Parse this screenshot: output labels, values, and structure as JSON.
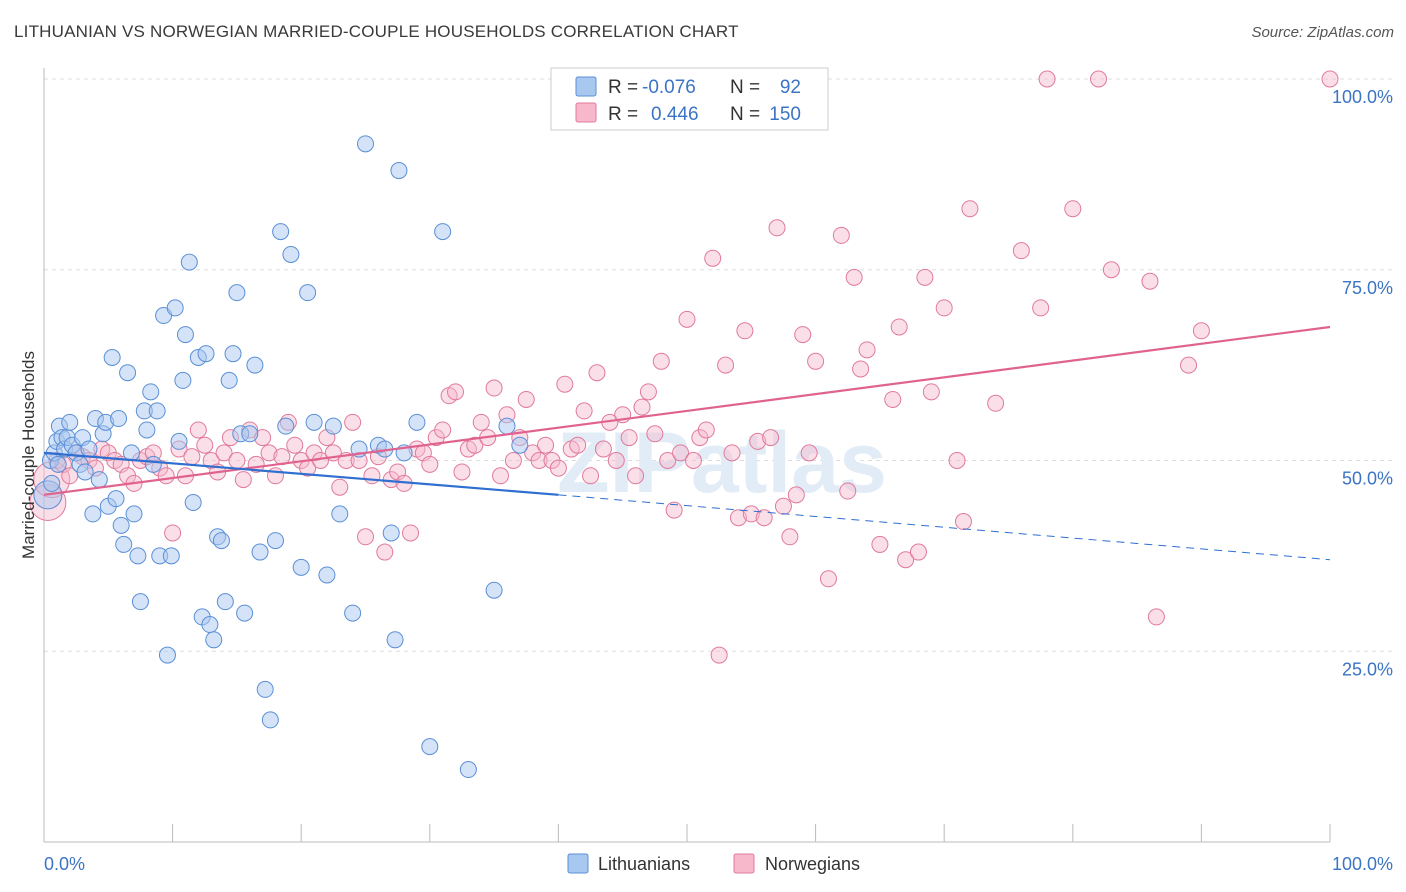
{
  "title": "LITHUANIAN VS NORWEGIAN MARRIED-COUPLE HOUSEHOLDS CORRELATION CHART",
  "source": "Source: ZipAtlas.com",
  "watermark": "ZIPatlas",
  "colors": {
    "blue_fill": "#a9c8f0",
    "blue_stroke": "#5a8fd6",
    "blue_line": "#2f6fd0",
    "pink_fill": "#f7b8cb",
    "pink_stroke": "#e07a9c",
    "pink_line": "#e0638f",
    "tick_text": "#3b74c4",
    "grid": "#dddddd"
  },
  "legend": {
    "rows": [
      {
        "r_label": "R =",
        "r_value": "-0.076",
        "n_label": "N =",
        "n_value": "92"
      },
      {
        "r_label": "R =",
        "r_value": "0.446",
        "n_label": "N =",
        "n_value": "150"
      }
    ]
  },
  "bottom_legend": {
    "items": [
      "Lithuanians",
      "Norwegians"
    ]
  },
  "chart_data": {
    "type": "scatter",
    "title": "LITHUANIAN VS NORWEGIAN MARRIED-COUPLE HOUSEHOLDS CORRELATION CHART",
    "xlabel": "",
    "ylabel": "Married-couple Households",
    "xlim": [
      0,
      100
    ],
    "ylim": [
      0,
      100
    ],
    "x_tick_labels": [
      "0.0%",
      "100.0%"
    ],
    "y_tick_labels": [
      "100.0%",
      "75.0%",
      "50.0%",
      "25.0%"
    ],
    "y_ticks": [
      100,
      75,
      50,
      25
    ],
    "series": [
      {
        "name": "Lithuanians",
        "r": -0.076,
        "n": 92,
        "trend": {
          "x0": 0,
          "y0": 51.0,
          "x1": 40,
          "y1": 45.5,
          "dash_to_x": 100,
          "dash_to_y": 37.0
        },
        "points": [
          [
            0.3,
            45.5
          ],
          [
            0.5,
            50
          ],
          [
            0.8,
            51
          ],
          [
            1.0,
            52.5
          ],
          [
            1.2,
            54.5
          ],
          [
            1.4,
            53
          ],
          [
            1.6,
            51.5
          ],
          [
            1.8,
            53
          ],
          [
            2.0,
            55
          ],
          [
            2.2,
            52
          ],
          [
            2.5,
            51
          ],
          [
            2.8,
            49.5
          ],
          [
            3.0,
            53
          ],
          [
            3.2,
            48.5
          ],
          [
            3.5,
            51.5
          ],
          [
            3.8,
            43
          ],
          [
            4.0,
            55.5
          ],
          [
            4.3,
            47.5
          ],
          [
            4.6,
            53.5
          ],
          [
            4.8,
            55
          ],
          [
            5.0,
            44
          ],
          [
            5.3,
            63.5
          ],
          [
            5.6,
            45
          ],
          [
            5.8,
            55.5
          ],
          [
            6.0,
            41.5
          ],
          [
            6.2,
            39
          ],
          [
            6.5,
            61.5
          ],
          [
            6.8,
            51
          ],
          [
            7.0,
            43
          ],
          [
            7.3,
            37.5
          ],
          [
            7.5,
            31.5
          ],
          [
            7.8,
            56.5
          ],
          [
            8.0,
            54
          ],
          [
            8.3,
            59
          ],
          [
            8.5,
            49.5
          ],
          [
            8.8,
            56.5
          ],
          [
            9.0,
            37.5
          ],
          [
            9.3,
            69
          ],
          [
            9.6,
            24.5
          ],
          [
            9.9,
            37.5
          ],
          [
            10.2,
            70
          ],
          [
            10.5,
            52.5
          ],
          [
            10.8,
            60.5
          ],
          [
            11.0,
            66.5
          ],
          [
            11.3,
            76
          ],
          [
            11.6,
            44.5
          ],
          [
            12.0,
            63.5
          ],
          [
            12.3,
            29.5
          ],
          [
            12.6,
            64
          ],
          [
            12.9,
            28.5
          ],
          [
            13.2,
            26.5
          ],
          [
            13.5,
            40
          ],
          [
            13.8,
            39.5
          ],
          [
            14.1,
            31.5
          ],
          [
            14.4,
            60.5
          ],
          [
            14.7,
            64
          ],
          [
            15.0,
            72
          ],
          [
            15.3,
            53.5
          ],
          [
            15.6,
            30
          ],
          [
            16.0,
            53.5
          ],
          [
            16.4,
            62.5
          ],
          [
            16.8,
            38
          ],
          [
            17.2,
            20
          ],
          [
            17.6,
            16
          ],
          [
            18.0,
            39.5
          ],
          [
            18.4,
            80
          ],
          [
            18.8,
            54.5
          ],
          [
            19.2,
            77
          ],
          [
            20.0,
            36
          ],
          [
            20.5,
            72
          ],
          [
            21.0,
            55
          ],
          [
            22.0,
            35
          ],
          [
            22.5,
            54.5
          ],
          [
            23.0,
            43
          ],
          [
            24.0,
            30
          ],
          [
            24.5,
            51.5
          ],
          [
            25.0,
            91.5
          ],
          [
            26.0,
            52
          ],
          [
            26.5,
            51.5
          ],
          [
            27.0,
            40.5
          ],
          [
            27.3,
            26.5
          ],
          [
            27.6,
            88
          ],
          [
            28.0,
            51
          ],
          [
            29.0,
            55
          ],
          [
            30.0,
            12.5
          ],
          [
            31.0,
            80
          ],
          [
            33.0,
            9.5
          ],
          [
            35.0,
            33
          ],
          [
            36.0,
            54.5
          ],
          [
            37.0,
            52
          ],
          [
            0.6,
            47
          ],
          [
            1.1,
            49.5
          ]
        ]
      },
      {
        "name": "Norwegians",
        "r": 0.446,
        "n": 150,
        "trend": {
          "x0": 0,
          "y0": 45.5,
          "x1": 100,
          "y1": 67.5
        },
        "points": [
          [
            0.3,
            44.5
          ],
          [
            0.6,
            47.5
          ],
          [
            1.0,
            50
          ],
          [
            1.5,
            49.5
          ],
          [
            2.0,
            48
          ],
          [
            2.5,
            51
          ],
          [
            3.0,
            50.5
          ],
          [
            3.5,
            50
          ],
          [
            4.0,
            49
          ],
          [
            4.5,
            51.5
          ],
          [
            5.0,
            51
          ],
          [
            5.5,
            50
          ],
          [
            6.0,
            49.5
          ],
          [
            6.5,
            48
          ],
          [
            7.0,
            47
          ],
          [
            7.5,
            50
          ],
          [
            8.0,
            50.5
          ],
          [
            8.5,
            51
          ],
          [
            9.0,
            49
          ],
          [
            9.5,
            48
          ],
          [
            10.0,
            40.5
          ],
          [
            10.5,
            51.5
          ],
          [
            11.0,
            48
          ],
          [
            11.5,
            50.5
          ],
          [
            12.0,
            54
          ],
          [
            12.5,
            52
          ],
          [
            13.0,
            50
          ],
          [
            13.5,
            48.5
          ],
          [
            14.0,
            51
          ],
          [
            14.5,
            53
          ],
          [
            15.0,
            50
          ],
          [
            15.5,
            47.5
          ],
          [
            16.0,
            54
          ],
          [
            16.5,
            49.5
          ],
          [
            17.0,
            53
          ],
          [
            17.5,
            51
          ],
          [
            18.0,
            48
          ],
          [
            18.5,
            50.5
          ],
          [
            19.0,
            55
          ],
          [
            19.5,
            52
          ],
          [
            20.0,
            50
          ],
          [
            20.5,
            49
          ],
          [
            21.0,
            51
          ],
          [
            21.5,
            50
          ],
          [
            22.0,
            53
          ],
          [
            22.5,
            51
          ],
          [
            23.0,
            46.5
          ],
          [
            23.5,
            50
          ],
          [
            24.0,
            55
          ],
          [
            24.5,
            50
          ],
          [
            25.0,
            40
          ],
          [
            25.5,
            48
          ],
          [
            26.0,
            50.5
          ],
          [
            26.5,
            38
          ],
          [
            27.0,
            47.5
          ],
          [
            27.5,
            48.5
          ],
          [
            28.0,
            47
          ],
          [
            28.5,
            40.5
          ],
          [
            29.0,
            51.5
          ],
          [
            29.5,
            51
          ],
          [
            30.0,
            49.5
          ],
          [
            30.5,
            53
          ],
          [
            31.0,
            54
          ],
          [
            31.5,
            58.5
          ],
          [
            32.0,
            59
          ],
          [
            32.5,
            48.5
          ],
          [
            33.0,
            51.5
          ],
          [
            33.5,
            52
          ],
          [
            34.0,
            55
          ],
          [
            34.5,
            53
          ],
          [
            35.0,
            59.5
          ],
          [
            35.5,
            48
          ],
          [
            36.0,
            56
          ],
          [
            36.5,
            50
          ],
          [
            37.0,
            53
          ],
          [
            37.5,
            58
          ],
          [
            38.0,
            51
          ],
          [
            38.5,
            50
          ],
          [
            39.0,
            52
          ],
          [
            39.5,
            50
          ],
          [
            40.0,
            49
          ],
          [
            40.5,
            60
          ],
          [
            41.0,
            51.5
          ],
          [
            41.5,
            52
          ],
          [
            42.0,
            56.5
          ],
          [
            42.5,
            48
          ],
          [
            43.0,
            61.5
          ],
          [
            43.5,
            51.5
          ],
          [
            44.0,
            55
          ],
          [
            44.5,
            50
          ],
          [
            45.0,
            56
          ],
          [
            45.5,
            53
          ],
          [
            46.0,
            48
          ],
          [
            46.5,
            57
          ],
          [
            47.0,
            59
          ],
          [
            47.5,
            53.5
          ],
          [
            48.0,
            63
          ],
          [
            48.5,
            50
          ],
          [
            49.0,
            43.5
          ],
          [
            49.5,
            51
          ],
          [
            50.0,
            68.5
          ],
          [
            50.5,
            50
          ],
          [
            51.0,
            53
          ],
          [
            51.5,
            54
          ],
          [
            52.0,
            76.5
          ],
          [
            52.5,
            24.5
          ],
          [
            53.0,
            62.5
          ],
          [
            53.5,
            51
          ],
          [
            54.0,
            42.5
          ],
          [
            54.5,
            67
          ],
          [
            55.0,
            43
          ],
          [
            55.5,
            52.5
          ],
          [
            56.0,
            42.5
          ],
          [
            56.5,
            53
          ],
          [
            57.0,
            80.5
          ],
          [
            57.5,
            44
          ],
          [
            58.0,
            40
          ],
          [
            58.5,
            45.5
          ],
          [
            59.0,
            66.5
          ],
          [
            59.5,
            51
          ],
          [
            60.0,
            63
          ],
          [
            61.0,
            34.5
          ],
          [
            62.0,
            79.5
          ],
          [
            62.5,
            46
          ],
          [
            63.0,
            74
          ],
          [
            63.5,
            62
          ],
          [
            64.0,
            64.5
          ],
          [
            65.0,
            39
          ],
          [
            66.0,
            58
          ],
          [
            66.5,
            67.5
          ],
          [
            67.0,
            37
          ],
          [
            68.0,
            38
          ],
          [
            68.5,
            74
          ],
          [
            69.0,
            59
          ],
          [
            70.0,
            70
          ],
          [
            71.0,
            50
          ],
          [
            71.5,
            42
          ],
          [
            72.0,
            83
          ],
          [
            74.0,
            57.5
          ],
          [
            76.0,
            77.5
          ],
          [
            77.5,
            70
          ],
          [
            78.0,
            100
          ],
          [
            80.0,
            83
          ],
          [
            82.0,
            100
          ],
          [
            83.0,
            75
          ],
          [
            86.0,
            73.5
          ],
          [
            86.5,
            29.5
          ],
          [
            89.0,
            62.5
          ],
          [
            90.0,
            67
          ],
          [
            100.0,
            100
          ]
        ]
      }
    ]
  }
}
